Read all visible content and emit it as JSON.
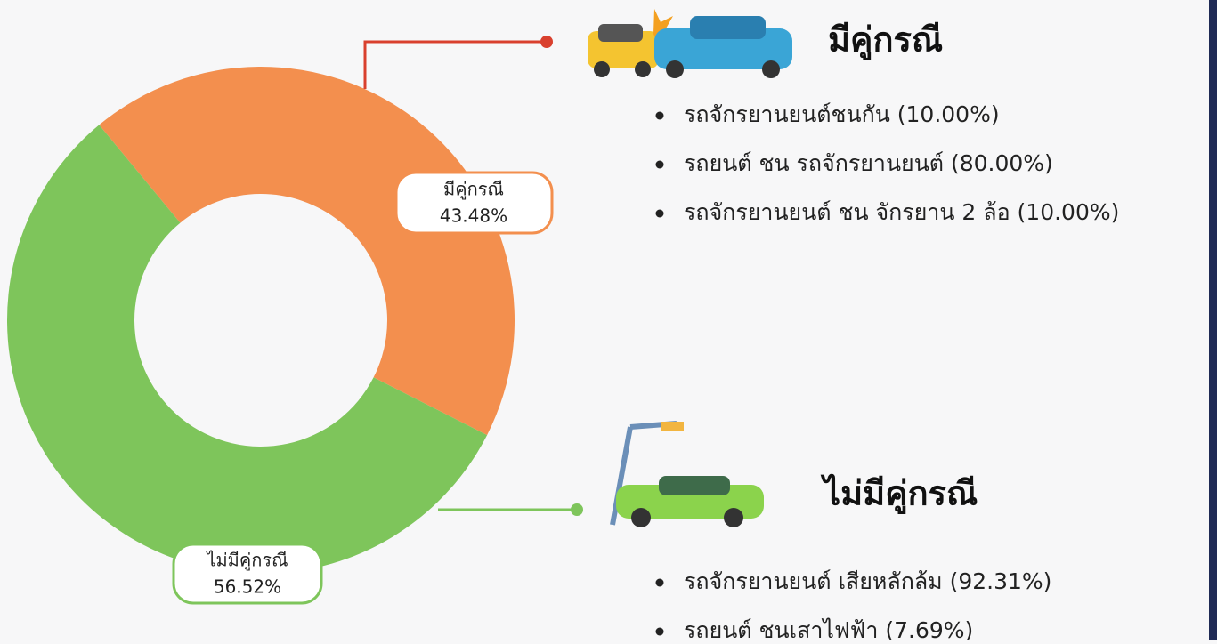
{
  "chart_data": {
    "type": "pie",
    "categories": [
      "มีคู่กรณี",
      "ไม่มีคู่กรณี"
    ],
    "values": [
      43.48,
      56.52
    ],
    "value_labels": [
      "43.48%",
      "56.52%"
    ],
    "colors": [
      "#f38f4e",
      "#7ec55b"
    ],
    "donut": true,
    "groups": [
      {
        "title": "มีคู่กรณี",
        "items": [
          "รถจักรยานยนต์ชนกัน (10.00%)",
          "รถยนต์ ชน รถจักรยานยนต์  (80.00%)",
          "รถจักรยานยนต์ ชน จักรยาน 2 ล้อ  (10.00%)"
        ]
      },
      {
        "title": "ไม่มีคู่กรณี",
        "items": [
          "รถจักรยานยนต์ เสียหลักล้ม  (92.31%)",
          "รถยนต์ ชนเสาไฟฟ้า  (7.69%)"
        ]
      }
    ]
  }
}
